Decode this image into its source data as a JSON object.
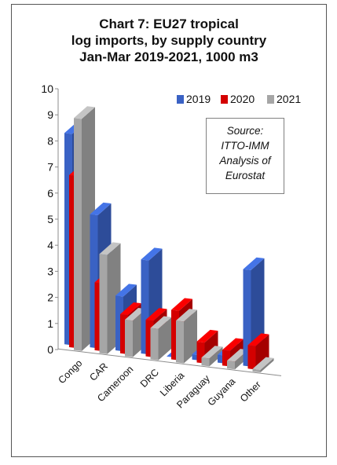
{
  "chart_data": {
    "type": "bar",
    "title_lines": [
      "Chart 7: EU27 tropical",
      "log imports, by supply country",
      "Jan-Mar 2019-2021, 1000 m3"
    ],
    "categories": [
      "Congo",
      "CAR",
      "Cameroon",
      "DRC",
      "Liberia",
      "Paraguay",
      "Guyana",
      "Other"
    ],
    "series": [
      {
        "name": "2019",
        "color": "#3a62c4",
        "values": [
          8.1,
          5.1,
          2.1,
          3.6,
          0.0,
          0.2,
          0.3,
          3.7
        ]
      },
      {
        "name": "2020",
        "color": "#d40000",
        "values": [
          6.6,
          2.6,
          1.5,
          1.4,
          1.9,
          0.8,
          0.6,
          0.9
        ]
      },
      {
        "name": "2021",
        "color": "#a6a6a6",
        "values": [
          8.9,
          3.8,
          1.4,
          1.2,
          1.6,
          0.3,
          0.3,
          0.1
        ]
      }
    ],
    "ylim": [
      0,
      10
    ],
    "yticks": [
      "0",
      "1",
      "2",
      "3",
      "4",
      "5",
      "6",
      "7",
      "8",
      "9",
      "10"
    ],
    "legend_position": "top-right",
    "annotation_lines": [
      "Source:",
      "ITTO-IMM",
      "Analysis of",
      "Eurostat"
    ],
    "style": "3d-clustered-column",
    "grid": false
  }
}
